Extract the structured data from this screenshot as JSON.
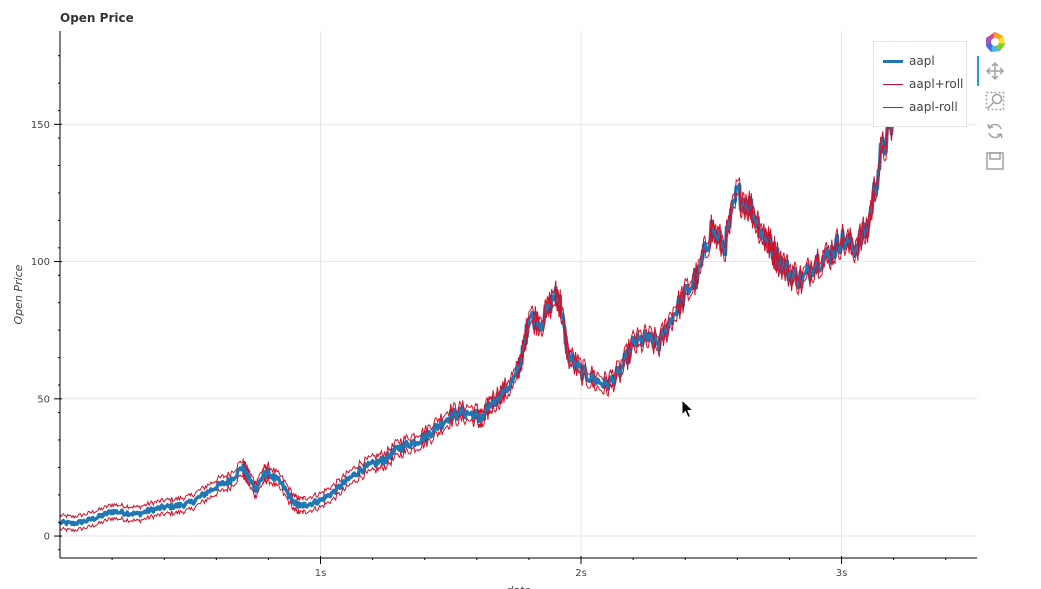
{
  "title": "Open Price",
  "legend": {
    "items": [
      {
        "label": "aapl",
        "color": "#1f77b4"
      },
      {
        "label": "aapl+roll",
        "color": "#d0102a"
      },
      {
        "label": "aapl-roll",
        "color": "#d0102a"
      }
    ]
  },
  "toolbar": {
    "tools": [
      {
        "name": "bokeh-logo-icon"
      },
      {
        "name": "pan-icon"
      },
      {
        "name": "box-zoom-icon"
      },
      {
        "name": "reset-icon"
      },
      {
        "name": "save-icon"
      }
    ]
  },
  "chart_data": {
    "type": "line",
    "title": "Open Price",
    "xlabel": "date",
    "ylabel": "Open Price",
    "xlim": [
      0.0,
      3.52
    ],
    "ylim": [
      -8,
      184
    ],
    "x_ticks": [
      {
        "value": 1,
        "label": "1s"
      },
      {
        "value": 2,
        "label": "2s"
      },
      {
        "value": 3,
        "label": "3s"
      }
    ],
    "y_ticks": [
      0,
      50,
      100,
      150
    ],
    "grid": true,
    "legend_position": "top-right",
    "roll_offset": 2.5,
    "x": [
      0.0,
      0.05,
      0.1,
      0.15,
      0.2,
      0.25,
      0.3,
      0.35,
      0.4,
      0.45,
      0.5,
      0.55,
      0.6,
      0.65,
      0.7,
      0.72,
      0.75,
      0.78,
      0.8,
      0.85,
      0.9,
      0.92,
      0.95,
      1.0,
      1.05,
      1.1,
      1.15,
      1.2,
      1.25,
      1.3,
      1.35,
      1.4,
      1.45,
      1.5,
      1.55,
      1.6,
      1.62,
      1.65,
      1.7,
      1.75,
      1.78,
      1.8,
      1.85,
      1.9,
      1.92,
      1.95,
      2.0,
      2.05,
      2.1,
      2.15,
      2.2,
      2.25,
      2.3,
      2.35,
      2.4,
      2.45,
      2.5,
      2.55,
      2.6,
      2.65,
      2.7,
      2.72,
      2.75,
      2.8,
      2.85,
      2.9,
      2.95,
      3.0,
      3.05,
      3.1,
      3.15,
      3.2
    ],
    "series": [
      {
        "name": "aapl",
        "values": [
          5,
          4.5,
          5.5,
          7,
          9,
          8.5,
          8,
          9.5,
          10.5,
          11,
          12,
          15,
          18,
          20,
          25,
          22,
          17,
          22,
          23,
          19,
          12,
          11,
          11.5,
          13,
          16,
          20,
          24,
          26,
          28,
          32,
          34,
          36,
          40,
          44,
          45,
          44,
          42,
          48,
          52,
          58,
          68,
          80,
          78,
          88,
          85,
          66,
          60,
          57,
          55,
          60,
          70,
          72,
          70,
          80,
          88,
          95,
          112,
          105,
          125,
          120,
          110,
          107,
          102,
          96,
          93,
          100,
          102,
          108,
          105,
          112,
          138,
          152
        ]
      }
    ]
  }
}
